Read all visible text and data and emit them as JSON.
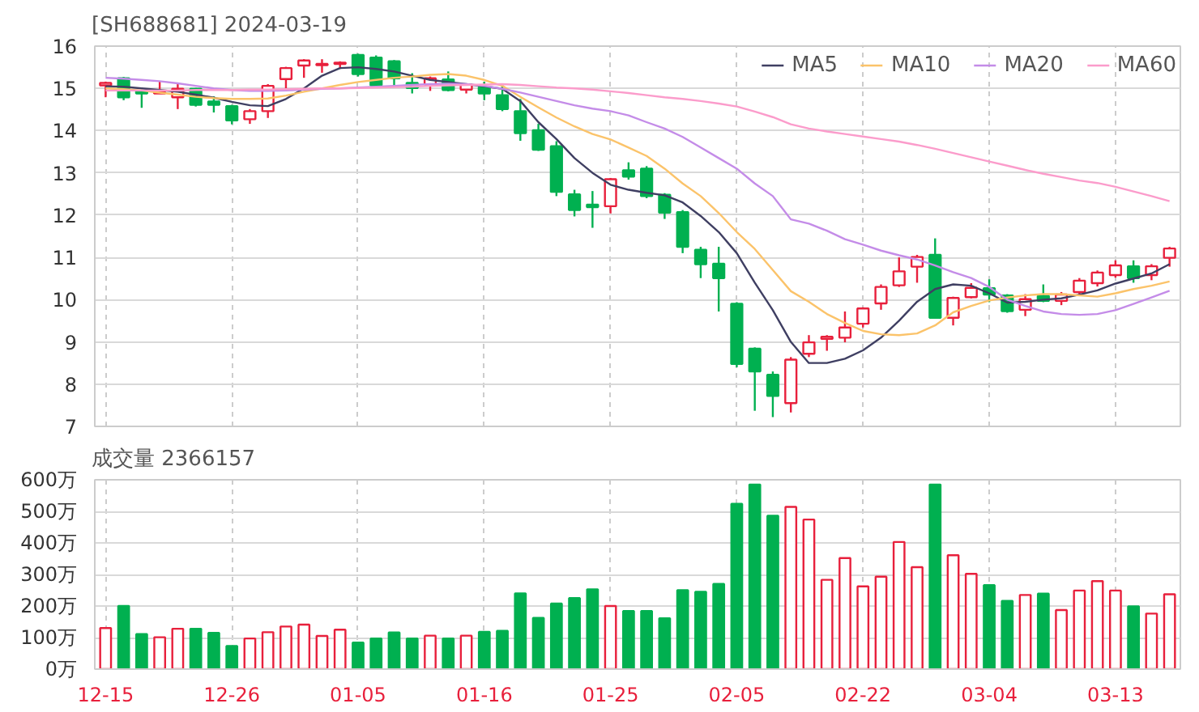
{
  "chart_data": [
    {
      "type": "candlestick",
      "title": "[SH688681] 2024-03-19",
      "categories": [
        null,
        null,
        null,
        null,
        null,
        null,
        null,
        null,
        null,
        null,
        null,
        null,
        null,
        null,
        null,
        null,
        null,
        null,
        null,
        null,
        null,
        null,
        null,
        null,
        null,
        null,
        null,
        null,
        null,
        null,
        null,
        null,
        null,
        null,
        null,
        null,
        null,
        null,
        null,
        null,
        null,
        null,
        null,
        null,
        null,
        null,
        null,
        null,
        null,
        null,
        null,
        null,
        null,
        null,
        null,
        null,
        null,
        null,
        null,
        null
      ],
      "tick_labels": "y",
      "ylim": [
        7,
        16
      ],
      "yticks": [
        7,
        8,
        9,
        10,
        11,
        12,
        13,
        14,
        15,
        16
      ],
      "grid": true,
      "legend": "top right",
      "ohlc": [
        [
          15.07,
          15.16,
          14.79,
          15.13
        ],
        [
          15.24,
          15.27,
          14.72,
          14.79
        ],
        [
          14.93,
          14.97,
          14.54,
          14.88
        ],
        [
          14.88,
          15.16,
          14.88,
          14.91
        ],
        [
          14.79,
          15.13,
          14.51,
          14.99
        ],
        [
          14.99,
          15.01,
          14.57,
          14.61
        ],
        [
          14.69,
          14.81,
          14.43,
          14.61
        ],
        [
          14.58,
          14.61,
          14.15,
          14.24
        ],
        [
          14.27,
          14.51,
          14.16,
          14.46
        ],
        [
          14.46,
          15.1,
          14.3,
          15.06
        ],
        [
          15.22,
          15.51,
          14.96,
          15.48
        ],
        [
          15.54,
          15.69,
          15.25,
          15.66
        ],
        [
          15.55,
          15.69,
          15.37,
          15.58
        ],
        [
          15.58,
          15.64,
          15.46,
          15.61
        ],
        [
          15.79,
          15.82,
          15.28,
          15.34
        ],
        [
          15.73,
          15.78,
          15.03,
          15.07
        ],
        [
          15.64,
          15.67,
          15.03,
          15.24
        ],
        [
          15.13,
          15.36,
          14.88,
          15.01
        ],
        [
          15.09,
          15.28,
          14.94,
          15.24
        ],
        [
          15.21,
          15.4,
          14.93,
          14.96
        ],
        [
          14.97,
          15.1,
          14.88,
          15.09
        ],
        [
          15.03,
          15.16,
          14.72,
          14.88
        ],
        [
          14.84,
          15.1,
          14.46,
          14.51
        ],
        [
          14.46,
          14.75,
          13.76,
          13.94
        ],
        [
          14.01,
          14.16,
          13.52,
          13.55
        ],
        [
          13.63,
          13.75,
          12.45,
          12.55
        ],
        [
          12.49,
          12.6,
          11.97,
          12.12
        ],
        [
          12.25,
          12.57,
          11.7,
          12.19
        ],
        [
          12.21,
          12.88,
          12.04,
          12.85
        ],
        [
          13.06,
          13.25,
          12.84,
          12.91
        ],
        [
          13.1,
          13.16,
          12.4,
          12.45
        ],
        [
          12.48,
          12.52,
          11.91,
          12.06
        ],
        [
          12.07,
          12.12,
          11.1,
          11.25
        ],
        [
          11.18,
          11.25,
          10.51,
          10.84
        ],
        [
          10.85,
          11.25,
          9.72,
          10.51
        ],
        [
          9.9,
          9.94,
          8.4,
          8.48
        ],
        [
          8.84,
          8.87,
          7.37,
          8.3
        ],
        [
          8.22,
          8.3,
          7.22,
          7.72
        ],
        [
          7.55,
          8.64,
          7.33,
          8.58
        ],
        [
          8.72,
          9.16,
          8.64,
          8.99
        ],
        [
          9.07,
          9.16,
          8.79,
          9.12
        ],
        [
          9.1,
          9.72,
          8.99,
          9.34
        ],
        [
          9.43,
          9.82,
          9.34,
          9.79
        ],
        [
          9.91,
          10.36,
          9.76,
          10.3
        ],
        [
          10.34,
          11.0,
          10.3,
          10.67
        ],
        [
          10.78,
          11.06,
          10.4,
          11.01
        ],
        [
          11.06,
          11.45,
          9.55,
          9.57
        ],
        [
          9.57,
          10.07,
          9.39,
          10.04
        ],
        [
          10.06,
          10.39,
          10.03,
          10.28
        ],
        [
          10.27,
          10.48,
          9.94,
          10.12
        ],
        [
          10.1,
          10.13,
          9.69,
          9.73
        ],
        [
          9.76,
          10.13,
          9.61,
          10.01
        ],
        [
          10.09,
          10.36,
          9.94,
          9.97
        ],
        [
          9.97,
          10.18,
          9.87,
          10.12
        ],
        [
          10.18,
          10.51,
          10.12,
          10.45
        ],
        [
          10.39,
          10.69,
          10.31,
          10.64
        ],
        [
          10.58,
          10.93,
          10.52,
          10.81
        ],
        [
          10.79,
          10.93,
          10.4,
          10.51
        ],
        [
          10.58,
          10.84,
          10.46,
          10.79
        ],
        [
          10.99,
          11.25,
          10.78,
          11.21
        ]
      ],
      "colors": [
        "#e8203c",
        "#00b050",
        "#00b050",
        "#e8203c",
        "#e8203c",
        "#00b050",
        "#00b050",
        "#00b050",
        "#e8203c",
        "#e8203c",
        "#e8203c",
        "#e8203c",
        "#e8203c",
        "#e8203c",
        "#00b050",
        "#00b050",
        "#00b050",
        "#00b050",
        "#e8203c",
        "#00b050",
        "#e8203c",
        "#00b050",
        "#00b050",
        "#00b050",
        "#00b050",
        "#00b050",
        "#00b050",
        "#00b050",
        "#e8203c",
        "#00b050",
        "#00b050",
        "#00b050",
        "#00b050",
        "#00b050",
        "#00b050",
        "#00b050",
        "#00b050",
        "#00b050",
        "#e8203c",
        "#e8203c",
        "#e8203c",
        "#e8203c",
        "#e8203c",
        "#e8203c",
        "#e8203c",
        "#e8203c",
        "#00b050",
        "#e8203c",
        "#e8203c",
        "#00b050",
        "#00b050",
        "#e8203c",
        "#00b050",
        "#e8203c",
        "#e8203c",
        "#e8203c",
        "#e8203c",
        "#00b050",
        "#e8203c",
        "#e8203c"
      ],
      "series": [
        {
          "name": "MA5",
          "type": "line",
          "color": "#3f3f62",
          "values": [
            15.05,
            15.04,
            15.0,
            14.96,
            14.92,
            14.85,
            14.78,
            14.68,
            14.6,
            14.58,
            14.75,
            15.0,
            15.3,
            15.48,
            15.5,
            15.46,
            15.4,
            15.3,
            15.2,
            15.15,
            15.1,
            15.05,
            14.99,
            14.7,
            14.2,
            13.8,
            13.35,
            13.0,
            12.72,
            12.6,
            12.53,
            12.47,
            12.3,
            11.98,
            11.6,
            11.1,
            10.4,
            9.75,
            9.0,
            8.5,
            8.5,
            8.6,
            8.8,
            9.1,
            9.5,
            9.95,
            10.25,
            10.36,
            10.33,
            10.15,
            9.93,
            9.95,
            10.0,
            10.03,
            10.12,
            10.22,
            10.38,
            10.5,
            10.62,
            10.84
          ]
        },
        {
          "name": "MA10",
          "type": "line",
          "color": "#fbc36a",
          "values": [
            15.0,
            14.98,
            14.95,
            14.9,
            14.85,
            14.8,
            14.77,
            14.75,
            14.75,
            14.76,
            14.83,
            14.92,
            15.0,
            15.08,
            15.15,
            15.2,
            15.25,
            15.28,
            15.32,
            15.34,
            15.3,
            15.2,
            15.06,
            14.8,
            14.55,
            14.31,
            14.1,
            13.92,
            13.79,
            13.6,
            13.4,
            13.1,
            12.75,
            12.45,
            12.05,
            11.6,
            11.2,
            10.7,
            10.2,
            9.95,
            9.66,
            9.45,
            9.26,
            9.18,
            9.16,
            9.2,
            9.39,
            9.7,
            9.85,
            9.98,
            10.05,
            10.1,
            10.13,
            10.13,
            10.1,
            10.07,
            10.15,
            10.25,
            10.33,
            10.43
          ]
        },
        {
          "name": "MA20",
          "type": "line",
          "color": "#c48ce8",
          "values": [
            15.25,
            15.23,
            15.2,
            15.17,
            15.12,
            15.06,
            15.0,
            14.96,
            14.94,
            14.94,
            14.95,
            14.97,
            14.99,
            15.0,
            15.02,
            15.04,
            15.06,
            15.08,
            15.1,
            15.11,
            15.1,
            15.06,
            14.99,
            14.9,
            14.8,
            14.7,
            14.6,
            14.52,
            14.46,
            14.36,
            14.2,
            14.05,
            13.85,
            13.6,
            13.35,
            13.1,
            12.75,
            12.45,
            11.9,
            11.8,
            11.63,
            11.43,
            11.3,
            11.16,
            11.05,
            10.95,
            10.81,
            10.65,
            10.51,
            10.3,
            10.0,
            9.85,
            9.72,
            9.66,
            9.64,
            9.66,
            9.75,
            9.9,
            10.05,
            10.21
          ]
        },
        {
          "name": "MA60",
          "type": "line",
          "color": "#fb9ccb",
          "values": [
            14.95,
            14.95,
            14.95,
            14.95,
            14.95,
            14.96,
            14.96,
            14.96,
            14.97,
            14.97,
            14.98,
            14.99,
            15.0,
            15.0,
            15.01,
            15.02,
            15.03,
            15.04,
            15.06,
            15.07,
            15.08,
            15.09,
            15.1,
            15.08,
            15.05,
            15.02,
            15.0,
            14.97,
            14.93,
            14.89,
            14.84,
            14.79,
            14.75,
            14.7,
            14.64,
            14.57,
            14.45,
            14.32,
            14.15,
            14.05,
            13.98,
            13.92,
            13.86,
            13.8,
            13.74,
            13.66,
            13.57,
            13.47,
            13.37,
            13.27,
            13.17,
            13.07,
            12.98,
            12.9,
            12.82,
            12.76,
            12.67,
            12.56,
            12.45,
            12.33
          ]
        }
      ]
    },
    {
      "type": "bar",
      "title": "成交量 2366157",
      "categories": [
        "12-15",
        null,
        null,
        null,
        null,
        null,
        null,
        "12-26",
        null,
        null,
        null,
        null,
        null,
        null,
        "01-05",
        null,
        null,
        null,
        null,
        null,
        null,
        "01-16",
        null,
        null,
        null,
        null,
        null,
        null,
        "01-25",
        null,
        null,
        null,
        null,
        null,
        null,
        "02-05",
        null,
        null,
        null,
        null,
        null,
        null,
        "02-22",
        null,
        null,
        null,
        null,
        null,
        null,
        "03-04",
        null,
        null,
        null,
        null,
        null,
        null,
        "03-13",
        null,
        null,
        null
      ],
      "ylim": [
        0,
        600
      ],
      "yticks": [
        {
          "value": 0,
          "label": "0万"
        },
        {
          "value": 100,
          "label": "100万"
        },
        {
          "value": 200,
          "label": "200万"
        },
        {
          "value": 300,
          "label": "300万"
        },
        {
          "value": 400,
          "label": "400万"
        },
        {
          "value": 500,
          "label": "500万"
        },
        {
          "value": 600,
          "label": "600万"
        }
      ],
      "grid": true,
      "values": [
        130,
        200,
        111,
        101,
        128,
        128,
        115,
        73,
        97,
        117,
        135,
        141,
        105,
        125,
        84,
        97,
        116,
        97,
        106,
        97,
        106,
        118,
        121,
        240,
        162,
        208,
        225,
        253,
        200,
        184,
        184,
        161,
        250,
        245,
        270,
        524,
        585,
        486,
        514,
        474,
        283,
        352,
        262,
        293,
        403,
        323,
        585,
        361,
        302,
        266,
        216,
        235,
        239,
        187,
        249,
        279,
        249,
        199,
        176,
        237
      ],
      "colors": [
        "#e8203c",
        "#00b050",
        "#00b050",
        "#e8203c",
        "#e8203c",
        "#00b050",
        "#00b050",
        "#00b050",
        "#e8203c",
        "#e8203c",
        "#e8203c",
        "#e8203c",
        "#e8203c",
        "#e8203c",
        "#00b050",
        "#00b050",
        "#00b050",
        "#00b050",
        "#e8203c",
        "#00b050",
        "#e8203c",
        "#00b050",
        "#00b050",
        "#00b050",
        "#00b050",
        "#00b050",
        "#00b050",
        "#00b050",
        "#e8203c",
        "#00b050",
        "#00b050",
        "#00b050",
        "#00b050",
        "#00b050",
        "#00b050",
        "#00b050",
        "#00b050",
        "#00b050",
        "#e8203c",
        "#e8203c",
        "#e8203c",
        "#e8203c",
        "#e8203c",
        "#e8203c",
        "#e8203c",
        "#e8203c",
        "#00b050",
        "#e8203c",
        "#e8203c",
        "#00b050",
        "#00b050",
        "#e8203c",
        "#00b050",
        "#e8203c",
        "#e8203c",
        "#e8203c",
        "#e8203c",
        "#00b050",
        "#e8203c",
        "#e8203c"
      ]
    }
  ]
}
